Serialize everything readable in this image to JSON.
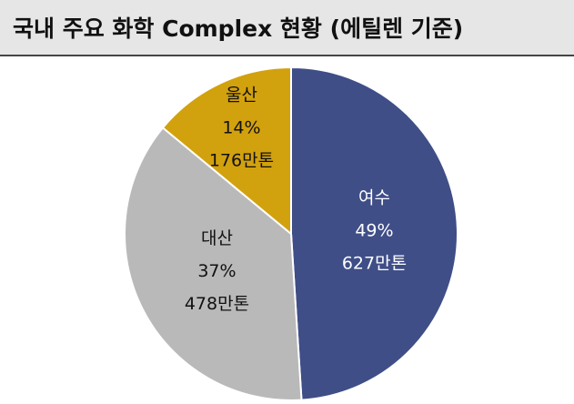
{
  "chart_data": {
    "type": "pie",
    "title": "국내 주요 화학 Complex 현황 (에틸렌 기준)",
    "categories": [
      "여수",
      "대산",
      "울산"
    ],
    "values": [
      49,
      37,
      14
    ],
    "value_labels": [
      "49%",
      "37%",
      "14%"
    ],
    "capacities": [
      627,
      478,
      176
    ],
    "capacity_labels": [
      "627만톤",
      "478만톤",
      "176만톤"
    ],
    "colors": [
      "#3f4e87",
      "#b9b9b9",
      "#d2a10e"
    ]
  }
}
